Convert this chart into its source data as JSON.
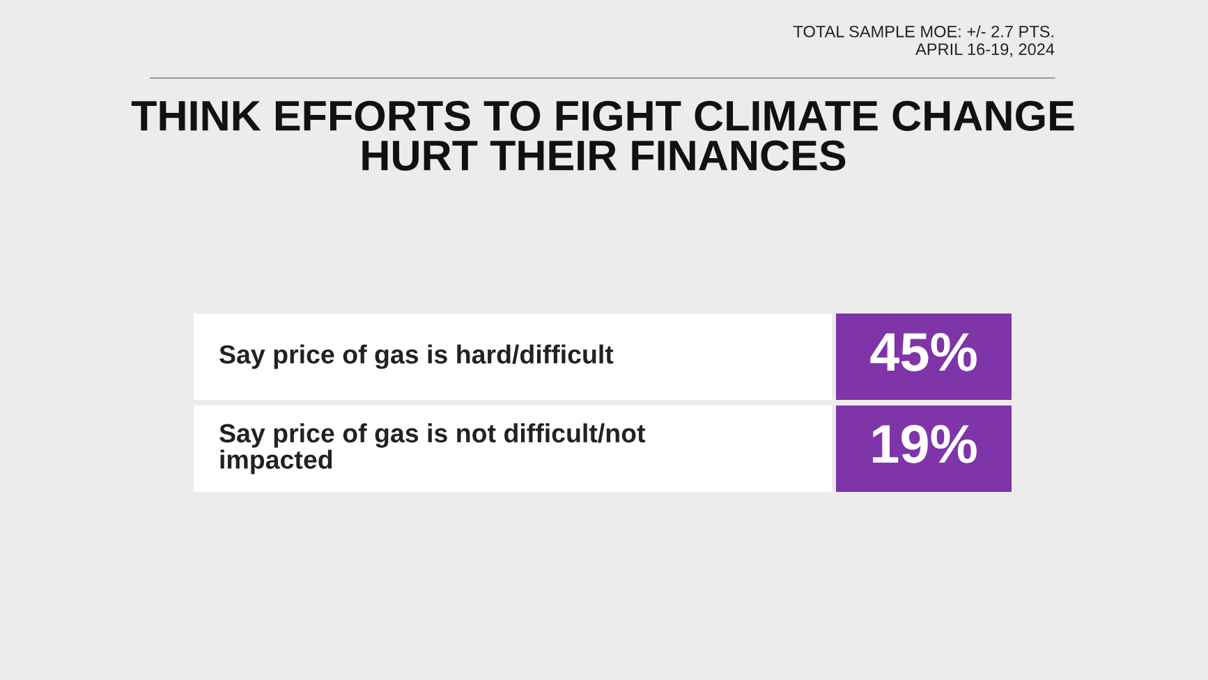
{
  "chart_data": {
    "type": "other",
    "title": "THINK EFFORTS TO FIGHT CLIMATE CHANGE\nHURT THEIR FINANCES",
    "annotations": [
      "TOTAL SAMPLE MOE: +/- 2.7 PTS.\nAPRIL 16-19, 2024"
    ],
    "categories": [
      "Say price of gas is hard/difficult",
      "Say price of gas is not difficult/not\nimpacted"
    ],
    "values": [
      45,
      19
    ],
    "value_labels": [
      "45%",
      "19%"
    ],
    "color": "#7f34a8"
  }
}
